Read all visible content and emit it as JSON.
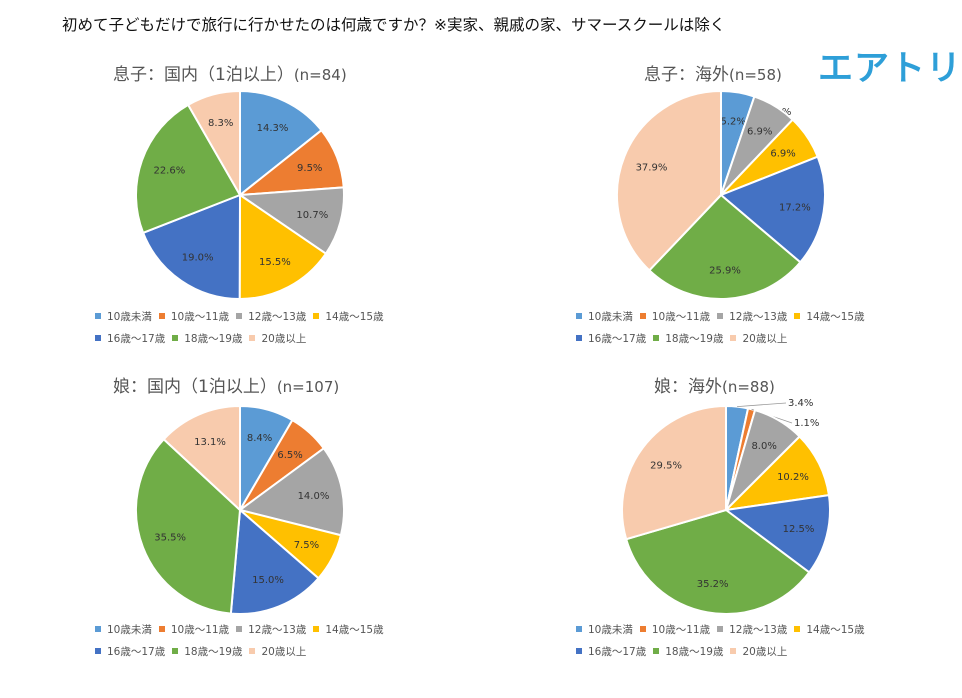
{
  "title": "初めて子どもだけで旅行に行かせたのは何歳ですか？※実家、親戚の家、サマースクールは除く",
  "logo": "エアトリ",
  "colors": [
    "#5b9bd5",
    "#ed7d31",
    "#a5a5a5",
    "#ffc000",
    "#4472c4",
    "#70ad47",
    "#f8cbad"
  ],
  "legend": [
    "10歳未満",
    "10歳～11歳",
    "12歳～13歳",
    "14歳～15歳",
    "16歳～17歳",
    "18歳～19歳",
    "20歳以上"
  ],
  "chart_data": [
    {
      "type": "pie",
      "title": "息子：国内（1泊以上）",
      "n_label": "(n=84)",
      "categories": [
        "10歳未満",
        "10歳～11歳",
        "12歳～13歳",
        "14歳～15歳",
        "16歳～17歳",
        "18歳～19歳",
        "20歳以上"
      ],
      "values": [
        14.3,
        9.5,
        10.7,
        15.5,
        19.0,
        22.6,
        8.3
      ],
      "labels": [
        "14.3%",
        "9.5%",
        "10.7%",
        "15.5%",
        "19.0%",
        "22.6%",
        "8.3%"
      ]
    },
    {
      "type": "pie",
      "title": "息子：海外",
      "n_label": "(n=58)",
      "categories": [
        "10歳未満",
        "10歳～11歳",
        "12歳～13歳",
        "14歳～15歳",
        "16歳～17歳",
        "18歳～19歳",
        "20歳以上"
      ],
      "values": [
        5.2,
        0.0,
        6.9,
        6.9,
        17.2,
        25.9,
        37.9
      ],
      "labels": [
        "5.2%",
        "0.0%",
        "6.9%",
        "6.9%",
        "17.2%",
        "25.9%",
        "37.9%"
      ]
    },
    {
      "type": "pie",
      "title": "娘：国内（1泊以上）",
      "n_label": "(n=107)",
      "categories": [
        "10歳未満",
        "10歳～11歳",
        "12歳～13歳",
        "14歳～15歳",
        "16歳～17歳",
        "18歳～19歳",
        "20歳以上"
      ],
      "values": [
        8.4,
        6.5,
        14.0,
        7.5,
        15.0,
        35.5,
        13.1
      ],
      "labels": [
        "8.4%",
        "6.5%",
        "14.0%",
        "7.5%",
        "15.0%",
        "35.5%",
        "13.1%"
      ]
    },
    {
      "type": "pie",
      "title": "娘：海外",
      "n_label": "(n=88)",
      "categories": [
        "10歳未満",
        "10歳～11歳",
        "12歳～13歳",
        "14歳～15歳",
        "16歳～17歳",
        "18歳～19歳",
        "20歳以上"
      ],
      "values": [
        3.4,
        1.1,
        8.0,
        10.2,
        12.5,
        35.2,
        29.5
      ],
      "labels": [
        "3.4%",
        "1.1%",
        "8.0%",
        "10.2%",
        "12.5%",
        "35.2%",
        "29.5%"
      ]
    }
  ]
}
